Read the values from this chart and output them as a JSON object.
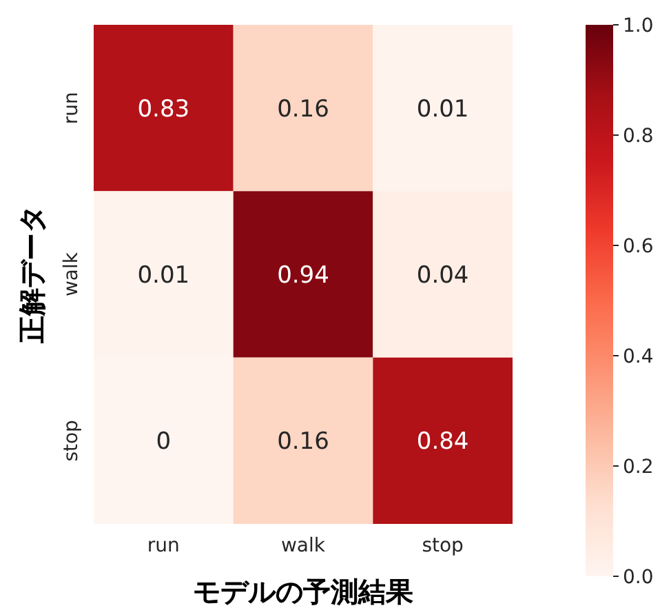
{
  "chart_data": {
    "type": "heatmap",
    "xlabel": "モデルの予測結果",
    "ylabel": "正解データ",
    "categories": [
      "run",
      "walk",
      "stop"
    ],
    "y_categories": [
      "run",
      "walk",
      "stop"
    ],
    "cells": [
      [
        0.83,
        0.16,
        0.01
      ],
      [
        0.01,
        0.94,
        0.04
      ],
      [
        0,
        0.16,
        0.84
      ]
    ],
    "data_labels": true,
    "clim": [
      0,
      1
    ],
    "cticks": [
      {
        "value": 0,
        "label": "0.0"
      },
      {
        "value": 0.2,
        "label": "0.2"
      },
      {
        "value": 0.4,
        "label": "0.4"
      },
      {
        "value": 0.6,
        "label": "0.6"
      },
      {
        "value": 0.8,
        "label": "0.8"
      },
      {
        "value": 1,
        "label": "1.0"
      }
    ]
  }
}
